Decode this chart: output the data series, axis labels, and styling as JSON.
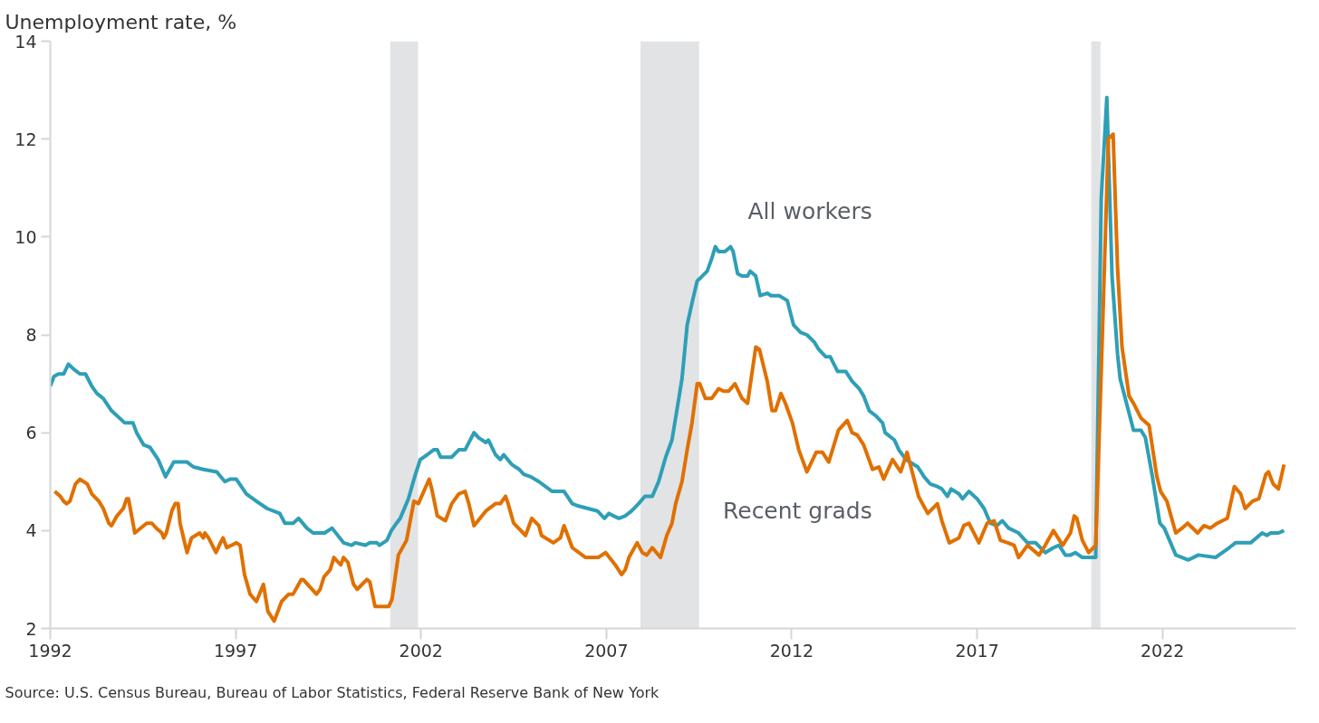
{
  "chart_data": {
    "type": "line",
    "ylabel": "Unemployment rate, %",
    "xlim": [
      1992,
      2025.6
    ],
    "xticks": [
      1992,
      1997,
      2002,
      2007,
      2012,
      2017,
      2022
    ],
    "ylim": [
      2,
      14
    ],
    "yticks": [
      2,
      4,
      6,
      8,
      10,
      12,
      14
    ],
    "grid": false,
    "legend": false,
    "bands": [
      {
        "axis": "x",
        "from": 2001.17,
        "to": 2001.92,
        "color": "#e1e3e5"
      },
      {
        "axis": "x",
        "from": 2007.92,
        "to": 2009.5,
        "color": "#e1e3e5"
      },
      {
        "axis": "x",
        "from": 2020.08,
        "to": 2020.33,
        "color": "#e1e3e5"
      }
    ],
    "series": [
      {
        "name": "All workers",
        "color": "#2e9fb6",
        "x": [
          1992.0,
          1992.1,
          1992.22,
          1992.36,
          1992.49,
          1992.63,
          1992.8,
          1992.95,
          1993.12,
          1993.26,
          1993.43,
          1993.65,
          1994.01,
          1994.23,
          1994.33,
          1994.52,
          1994.69,
          1994.91,
          1995.11,
          1995.33,
          1995.69,
          1995.86,
          1996.13,
          1996.49,
          1996.71,
          1996.85,
          1997.02,
          1997.29,
          1997.56,
          1997.85,
          1998.19,
          1998.33,
          1998.55,
          1998.7,
          1998.92,
          1999.09,
          1999.4,
          1999.6,
          1999.91,
          2000.13,
          2000.23,
          2000.5,
          2000.62,
          2000.81,
          2000.88,
          2001.08,
          2001.2,
          2001.34,
          2001.44,
          2001.66,
          2001.85,
          2001.98,
          2002.17,
          2002.34,
          2002.44,
          2002.53,
          2002.83,
          2003.02,
          2003.19,
          2003.43,
          2003.55,
          2003.75,
          2003.82,
          2004.01,
          2004.14,
          2004.23,
          2004.45,
          2004.65,
          2004.77,
          2004.96,
          2005.18,
          2005.54,
          2005.86,
          2006.08,
          2006.25,
          2006.51,
          2006.76,
          2006.95,
          2007.07,
          2007.19,
          2007.34,
          2007.51,
          2007.68,
          2007.87,
          2008.04,
          2008.24,
          2008.41,
          2008.6,
          2008.77,
          2008.89,
          2009.04,
          2009.18,
          2009.31,
          2009.45,
          2009.52,
          2009.72,
          2009.84,
          2009.94,
          2010.03,
          2010.2,
          2010.35,
          2010.42,
          2010.54,
          2010.66,
          2010.81,
          2010.88,
          2011.03,
          2011.15,
          2011.34,
          2011.44,
          2011.66,
          2011.88,
          2012.05,
          2012.24,
          2012.41,
          2012.61,
          2012.73,
          2012.92,
          2013.04,
          2013.24,
          2013.46,
          2013.63,
          2013.82,
          2013.94,
          2014.09,
          2014.26,
          2014.45,
          2014.52,
          2014.77,
          2014.89,
          2015.08,
          2015.4,
          2015.57,
          2015.74,
          2015.93,
          2016.05,
          2016.2,
          2016.3,
          2016.51,
          2016.61,
          2016.78,
          2017.0,
          2017.19,
          2017.36,
          2017.53,
          2017.68,
          2017.85,
          2018.12,
          2018.36,
          2018.58,
          2018.84,
          2019.06,
          2019.21,
          2019.38,
          2019.52,
          2019.65,
          2019.84,
          2020.2,
          2020.35,
          2020.5,
          2020.64,
          2020.79,
          2020.86,
          2021.1,
          2021.22,
          2021.42,
          2021.54,
          2021.73,
          2021.93,
          2022.05,
          2022.36,
          2022.7,
          2022.97,
          2023.43,
          2023.8,
          2023.97,
          2024.38,
          2024.69,
          2024.82,
          2024.91,
          2025.13,
          2025.28
        ],
        "values": [
          6.95,
          7.15,
          7.2,
          7.2,
          7.4,
          7.3,
          7.2,
          7.2,
          6.95,
          6.8,
          6.7,
          6.45,
          6.2,
          6.2,
          6.0,
          5.75,
          5.7,
          5.45,
          5.1,
          5.4,
          5.4,
          5.3,
          5.25,
          5.2,
          5.0,
          5.05,
          5.05,
          4.75,
          4.6,
          4.45,
          4.35,
          4.15,
          4.15,
          4.25,
          4.05,
          3.95,
          3.95,
          4.05,
          3.75,
          3.7,
          3.75,
          3.7,
          3.75,
          3.75,
          3.7,
          3.8,
          4.0,
          4.15,
          4.25,
          4.65,
          5.15,
          5.45,
          5.55,
          5.65,
          5.65,
          5.5,
          5.5,
          5.65,
          5.65,
          6.0,
          5.9,
          5.8,
          5.85,
          5.55,
          5.45,
          5.55,
          5.35,
          5.25,
          5.15,
          5.1,
          5.0,
          4.8,
          4.8,
          4.55,
          4.5,
          4.45,
          4.4,
          4.25,
          4.35,
          4.3,
          4.25,
          4.3,
          4.4,
          4.55,
          4.7,
          4.7,
          5.0,
          5.5,
          5.85,
          6.4,
          7.1,
          8.2,
          8.65,
          9.1,
          9.15,
          9.3,
          9.55,
          9.8,
          9.7,
          9.7,
          9.8,
          9.7,
          9.25,
          9.2,
          9.2,
          9.3,
          9.2,
          8.8,
          8.85,
          8.8,
          8.8,
          8.7,
          8.2,
          8.05,
          8.0,
          7.85,
          7.7,
          7.55,
          7.55,
          7.25,
          7.25,
          7.05,
          6.9,
          6.75,
          6.45,
          6.35,
          6.2,
          6.0,
          5.85,
          5.65,
          5.45,
          5.3,
          5.1,
          4.95,
          4.9,
          4.85,
          4.7,
          4.85,
          4.75,
          4.65,
          4.8,
          4.65,
          4.45,
          4.15,
          4.1,
          4.2,
          4.05,
          3.95,
          3.75,
          3.75,
          3.55,
          3.65,
          3.7,
          3.5,
          3.5,
          3.55,
          3.45,
          3.45,
          10.8,
          12.85,
          9.2,
          7.6,
          7.1,
          6.4,
          6.05,
          6.05,
          5.9,
          5.1,
          4.15,
          4.05,
          3.5,
          3.4,
          3.5,
          3.45,
          3.65,
          3.75,
          3.75,
          3.95,
          3.9,
          3.95,
          3.95,
          4.0
        ]
      },
      {
        "name": "Recent grads",
        "color": "#e07000",
        "x": [
          1992.12,
          1992.27,
          1992.36,
          1992.44,
          1992.53,
          1992.68,
          1992.8,
          1993.0,
          1993.12,
          1993.31,
          1993.43,
          1993.58,
          1993.65,
          1993.8,
          1993.97,
          1994.06,
          1994.11,
          1994.28,
          1994.6,
          1994.74,
          1994.86,
          1995.01,
          1995.06,
          1995.13,
          1995.28,
          1995.37,
          1995.45,
          1995.5,
          1995.69,
          1995.81,
          1996.03,
          1996.13,
          1996.17,
          1996.27,
          1996.47,
          1996.59,
          1996.66,
          1996.76,
          1997.02,
          1997.12,
          1997.24,
          1997.39,
          1997.56,
          1997.75,
          1997.87,
          1998.04,
          1998.24,
          1998.43,
          1998.55,
          1998.77,
          1998.82,
          1999.18,
          1999.28,
          1999.38,
          1999.55,
          1999.65,
          1999.77,
          1999.84,
          1999.91,
          2000.03,
          2000.18,
          2000.28,
          2000.54,
          2000.62,
          2000.76,
          2001.13,
          2001.22,
          2001.39,
          2001.61,
          2001.81,
          2001.93,
          2002.22,
          2002.29,
          2002.44,
          2002.66,
          2002.83,
          2003.02,
          2003.19,
          2003.29,
          2003.43,
          2003.75,
          2004.01,
          2004.14,
          2004.28,
          2004.35,
          2004.5,
          2004.82,
          2004.99,
          2005.18,
          2005.25,
          2005.57,
          2005.76,
          2005.86,
          2006.08,
          2006.44,
          2006.78,
          2006.98,
          2007.24,
          2007.41,
          2007.51,
          2007.61,
          2007.83,
          2007.97,
          2008.09,
          2008.24,
          2008.46,
          2008.63,
          2008.77,
          2008.87,
          2009.04,
          2009.18,
          2009.31,
          2009.45,
          2009.52,
          2009.67,
          2009.84,
          2010.03,
          2010.16,
          2010.3,
          2010.47,
          2010.66,
          2010.81,
          2011.03,
          2011.13,
          2011.34,
          2011.47,
          2011.56,
          2011.71,
          2011.83,
          2012.02,
          2012.19,
          2012.41,
          2012.66,
          2012.83,
          2013.0,
          2013.26,
          2013.5,
          2013.63,
          2013.77,
          2013.94,
          2014.18,
          2014.35,
          2014.48,
          2014.72,
          2014.94,
          2015.11,
          2015.25,
          2015.42,
          2015.67,
          2015.93,
          2016.05,
          2016.25,
          2016.51,
          2016.64,
          2016.78,
          2017.05,
          2017.27,
          2017.46,
          2017.63,
          2017.83,
          2018.0,
          2018.12,
          2018.36,
          2018.67,
          2018.84,
          2019.06,
          2019.31,
          2019.52,
          2019.62,
          2019.69,
          2019.84,
          2020.01,
          2020.2,
          2020.37,
          2020.54,
          2020.67,
          2020.79,
          2020.91,
          2021.1,
          2021.22,
          2021.42,
          2021.64,
          2021.85,
          2021.95,
          2022.12,
          2022.36,
          2022.53,
          2022.68,
          2022.95,
          2023.12,
          2023.29,
          2023.48,
          2023.75,
          2023.94,
          2024.11,
          2024.23,
          2024.43,
          2024.6,
          2024.79,
          2024.86,
          2024.99,
          2025.13,
          2025.28
        ],
        "values": [
          4.8,
          4.7,
          4.6,
          4.55,
          4.6,
          4.95,
          5.05,
          4.95,
          4.75,
          4.6,
          4.45,
          4.15,
          4.1,
          4.3,
          4.45,
          4.65,
          4.65,
          3.95,
          4.15,
          4.15,
          4.05,
          3.95,
          3.85,
          3.95,
          4.4,
          4.55,
          4.55,
          4.15,
          3.55,
          3.85,
          3.95,
          3.85,
          3.95,
          3.85,
          3.55,
          3.75,
          3.85,
          3.65,
          3.75,
          3.7,
          3.1,
          2.7,
          2.55,
          2.9,
          2.35,
          2.15,
          2.55,
          2.7,
          2.7,
          3.0,
          3.0,
          2.7,
          2.8,
          3.05,
          3.2,
          3.45,
          3.35,
          3.3,
          3.45,
          3.35,
          2.9,
          2.8,
          3.0,
          2.95,
          2.45,
          2.45,
          2.6,
          3.5,
          3.8,
          4.6,
          4.55,
          5.05,
          4.85,
          4.3,
          4.2,
          4.55,
          4.75,
          4.8,
          4.55,
          4.1,
          4.4,
          4.55,
          4.55,
          4.7,
          4.55,
          4.15,
          3.9,
          4.25,
          4.1,
          3.9,
          3.75,
          3.85,
          4.1,
          3.65,
          3.45,
          3.45,
          3.55,
          3.3,
          3.1,
          3.2,
          3.45,
          3.75,
          3.55,
          3.5,
          3.65,
          3.45,
          3.9,
          4.15,
          4.55,
          5.0,
          5.65,
          6.2,
          7.0,
          7.0,
          6.7,
          6.7,
          6.9,
          6.85,
          6.85,
          7.0,
          6.7,
          6.6,
          7.75,
          7.7,
          7.05,
          6.45,
          6.45,
          6.8,
          6.6,
          6.2,
          5.65,
          5.2,
          5.6,
          5.6,
          5.4,
          6.05,
          6.25,
          6.0,
          5.95,
          5.75,
          5.25,
          5.3,
          5.05,
          5.45,
          5.2,
          5.6,
          5.2,
          4.7,
          4.35,
          4.55,
          4.2,
          3.75,
          3.85,
          4.1,
          4.15,
          3.75,
          4.15,
          4.2,
          3.8,
          3.75,
          3.7,
          3.45,
          3.7,
          3.5,
          3.7,
          4.0,
          3.7,
          3.95,
          4.3,
          4.25,
          3.8,
          3.55,
          3.7,
          7.75,
          12.0,
          12.1,
          9.35,
          7.75,
          6.75,
          6.6,
          6.3,
          6.15,
          5.1,
          4.8,
          4.6,
          3.95,
          4.05,
          4.15,
          3.95,
          4.1,
          4.05,
          4.15,
          4.25,
          4.9,
          4.75,
          4.45,
          4.6,
          4.65,
          5.15,
          5.2,
          4.95,
          4.85,
          5.35
        ]
      }
    ],
    "annotations": [
      "Source: U.S. Census Bureau, Bureau of Labor Statistics, Federal Reserve Bank of New York"
    ]
  }
}
